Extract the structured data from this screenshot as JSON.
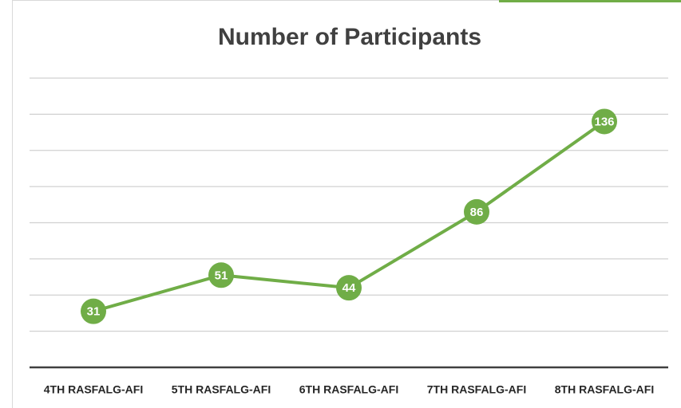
{
  "chart_data": {
    "type": "line",
    "title": "Number of Participants",
    "categories": [
      "4TH RASFALG-AFI",
      "5TH RASFALG-AFI",
      "6TH RASFALG-AFI",
      "7TH RASFALG-AFI",
      "8TH RASFALG-AFI"
    ],
    "values": [
      31,
      51,
      44,
      86,
      136
    ],
    "color": "#70ad47",
    "ylim": [
      0,
      160
    ],
    "yticks": [
      0,
      20,
      40,
      60,
      80,
      100,
      120,
      140,
      160
    ],
    "grid": true,
    "data_labels": true
  }
}
